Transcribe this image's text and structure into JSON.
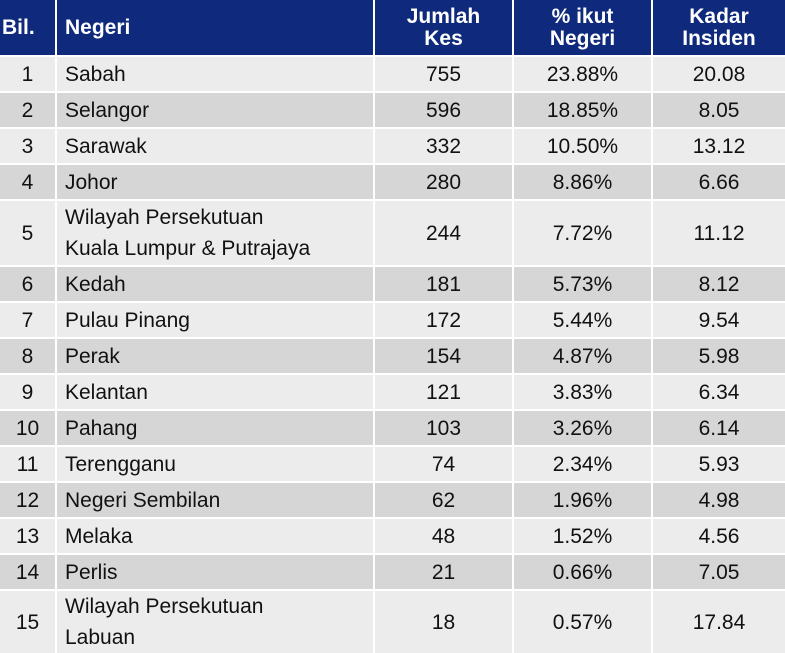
{
  "headers": {
    "bil": "Bil.",
    "negeri": "Negeri",
    "jumlah_1": "Jumlah",
    "jumlah_2": "Kes",
    "peratus_1": "% ikut",
    "peratus_2": "Negeri",
    "kadar_1": "Kadar",
    "kadar_2": "Insiden"
  },
  "rows": [
    {
      "bil": "1",
      "negeri": "Sabah",
      "negeri2": "",
      "jumlah": "755",
      "peratus": "23.88%",
      "kadar": "20.08"
    },
    {
      "bil": "2",
      "negeri": "Selangor",
      "negeri2": "",
      "jumlah": "596",
      "peratus": "18.85%",
      "kadar": "8.05"
    },
    {
      "bil": "3",
      "negeri": "Sarawak",
      "negeri2": "",
      "jumlah": "332",
      "peratus": "10.50%",
      "kadar": "13.12"
    },
    {
      "bil": "4",
      "negeri": "Johor",
      "negeri2": "",
      "jumlah": "280",
      "peratus": "8.86%",
      "kadar": "6.66"
    },
    {
      "bil": "5",
      "negeri": "Wilayah Persekutuan",
      "negeri2": "Kuala Lumpur & Putrajaya",
      "jumlah": "244",
      "peratus": "7.72%",
      "kadar": "11.12"
    },
    {
      "bil": "6",
      "negeri": "Kedah",
      "negeri2": "",
      "jumlah": "181",
      "peratus": "5.73%",
      "kadar": "8.12"
    },
    {
      "bil": "7",
      "negeri": "Pulau Pinang",
      "negeri2": "",
      "jumlah": "172",
      "peratus": "5.44%",
      "kadar": "9.54"
    },
    {
      "bil": "8",
      "negeri": "Perak",
      "negeri2": "",
      "jumlah": "154",
      "peratus": "4.87%",
      "kadar": "5.98"
    },
    {
      "bil": "9",
      "negeri": "Kelantan",
      "negeri2": "",
      "jumlah": "121",
      "peratus": "3.83%",
      "kadar": "6.34"
    },
    {
      "bil": "10",
      "negeri": "Pahang",
      "negeri2": "",
      "jumlah": "103",
      "peratus": "3.26%",
      "kadar": "6.14"
    },
    {
      "bil": "11",
      "negeri": "Terengganu",
      "negeri2": "",
      "jumlah": "74",
      "peratus": "2.34%",
      "kadar": "5.93"
    },
    {
      "bil": "12",
      "negeri": "Negeri Sembilan",
      "negeri2": "",
      "jumlah": "62",
      "peratus": "1.96%",
      "kadar": "4.98"
    },
    {
      "bil": "13",
      "negeri": "Melaka",
      "negeri2": "",
      "jumlah": "48",
      "peratus": "1.52%",
      "kadar": "4.56"
    },
    {
      "bil": "14",
      "negeri": "Perlis",
      "negeri2": "",
      "jumlah": "21",
      "peratus": "0.66%",
      "kadar": "7.05"
    },
    {
      "bil": "15",
      "negeri": "Wilayah Persekutuan",
      "negeri2": "Labuan",
      "jumlah": "18",
      "peratus": "0.57%",
      "kadar": "17.84"
    }
  ],
  "colors": {
    "header_bg": "#0f2a7d",
    "row_light": "#ececec",
    "row_dark": "#d6d6d6"
  }
}
